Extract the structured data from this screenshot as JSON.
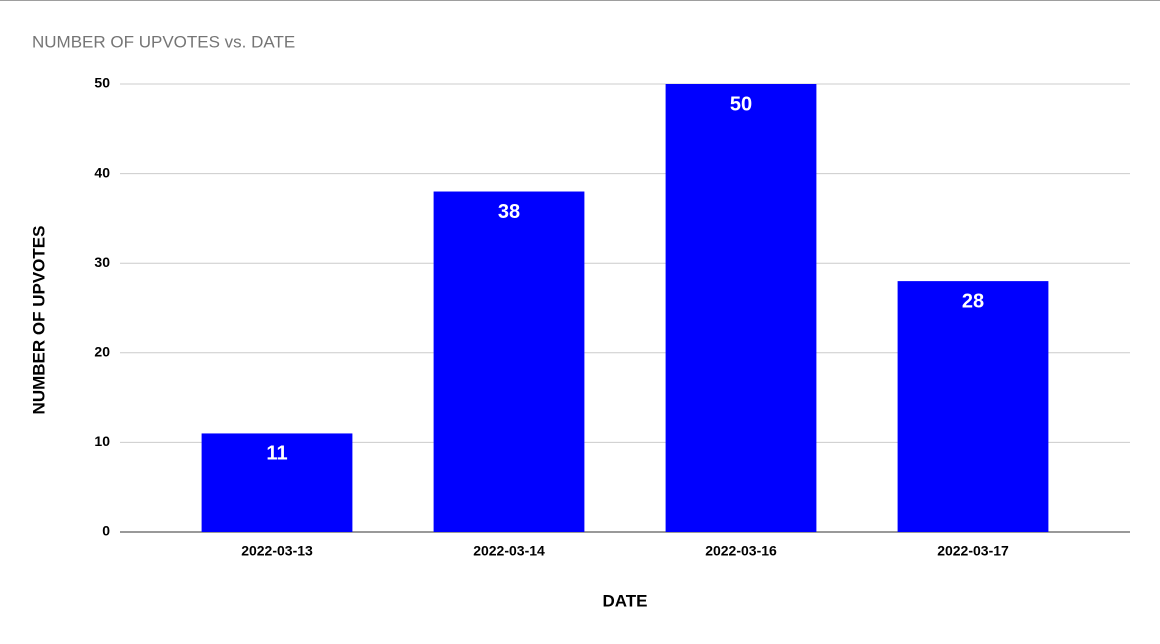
{
  "chart_data": {
    "type": "bar",
    "title": "NUMBER OF UPVOTES vs. DATE",
    "x_label": "DATE",
    "y_label": "NUMBER OF UPVOTES",
    "categories": [
      "2022-03-13",
      "2022-03-14",
      "2022-03-16",
      "2022-03-17"
    ],
    "values": [
      11,
      38,
      50,
      28
    ],
    "color": "#0000ff",
    "ylim": [
      0,
      50
    ],
    "yticks": [
      0,
      10,
      20,
      30,
      40,
      50
    ],
    "grid": true
  }
}
